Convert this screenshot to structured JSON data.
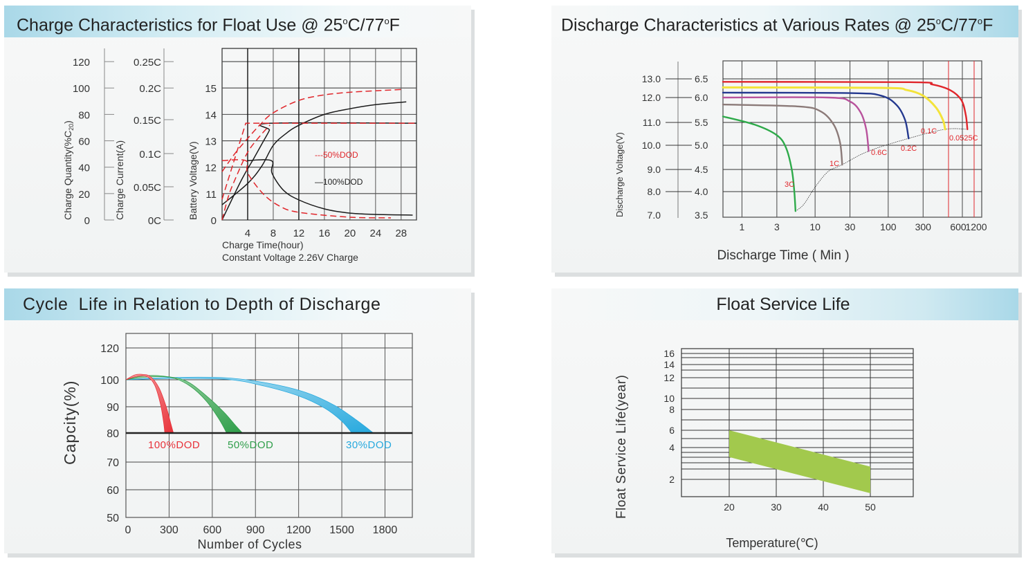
{
  "panels": {
    "charge": {
      "title_main": "Charge Characteristics for Float Use @ 25",
      "deg1": "o",
      "title_mid": "C/77",
      "deg2": "o",
      "title_end": "F"
    },
    "discharge": {
      "title_main": "Discharge Characteristics at Various Rates @ 25",
      "deg1": "o",
      "title_mid": "C/77",
      "deg2": "o",
      "title_end": "F"
    },
    "cycle": {
      "title": "Cycle  Life in Relation to Depth of Discharge"
    },
    "float": {
      "title": "Float Service Life"
    }
  },
  "colors": {
    "grid": "#2a2a2a",
    "red": "#e0262b",
    "black": "#1a1a1a",
    "yellow": "#f3e33a",
    "blue": "#24398f",
    "purple": "#b8529c",
    "brown": "#8b7a78",
    "green": "#2eaa4a",
    "label_red": "#e0262b",
    "cyc_red": "#e8323a",
    "cyc_green": "#2f9e4a",
    "cyc_blue": "#27a9de",
    "float_green": "#a2c94d"
  },
  "chart_data": [
    {
      "type": "line",
      "title": "Charge Characteristics for Float Use @ 25°C/77°F",
      "xlabel": "Charge Time(hour)",
      "xlabel2": "Constant Voltage 2.26V Charge",
      "xlim": [
        0,
        30.4
      ],
      "x_ticks": [
        "4",
        "8",
        "12",
        "16",
        "20",
        "24",
        "28"
      ],
      "x_tick_values": [
        4,
        8,
        12,
        16,
        20,
        24,
        28
      ],
      "axes": [
        {
          "label": "Charge Quantity(%C",
          "label_sub": "20",
          "label_end": ")",
          "ticks": [
            "120",
            "100",
            "80",
            "60",
            "40",
            "20",
            "0"
          ]
        },
        {
          "label": "Charge Current(A)",
          "ticks": [
            "0.25C",
            "0.2C",
            "0.15C",
            "0.1C",
            "0.05C",
            "0C"
          ]
        },
        {
          "label": "Battery Voltage(V)",
          "ticks": [
            "15",
            "14",
            "13",
            "12",
            "11",
            "0"
          ]
        }
      ],
      "ylim_percent": [
        0,
        130
      ],
      "legend": [
        {
          "name": "---50%DOD",
          "style": "dashed",
          "color": "red"
        },
        {
          "name": "—100%DOD",
          "style": "solid",
          "color": "black"
        }
      ],
      "series": [
        {
          "name": "100%DOD voltage",
          "style": "solid",
          "color": "black",
          "points": [
            [
              0,
              11.5
            ],
            [
              4,
              27.7
            ],
            [
              6.2,
              40.8
            ],
            [
              8,
              56.5
            ],
            [
              10,
              65.5
            ],
            [
              12,
              71.7
            ],
            [
              16,
              80
            ],
            [
              20,
              84.3
            ],
            [
              24,
              87.4
            ],
            [
              28.8,
              89.5
            ]
          ]
        },
        {
          "name": "100%DOD charge quantity",
          "style": "solid",
          "color": "black",
          "points": [
            [
              0,
              0
            ],
            [
              3,
              30
            ],
            [
              5,
              47
            ],
            [
              6.5,
              60
            ],
            [
              7.4,
              68
            ],
            [
              7.6,
              73.3
            ],
            [
              30.4,
              73.3
            ]
          ]
        },
        {
          "name": "100%DOD charge current",
          "style": "solid",
          "color": "black",
          "points": [
            [
              3.9,
              45
            ],
            [
              7.7,
              45
            ],
            [
              7.8,
              35.6
            ],
            [
              9.6,
              22.5
            ],
            [
              12,
              15.2
            ],
            [
              16,
              8.4
            ],
            [
              20,
              5.2
            ],
            [
              24,
              4.2
            ],
            [
              29.8,
              3.7
            ]
          ]
        },
        {
          "name": "50%DOD voltage",
          "style": "dashed",
          "color": "red",
          "points": [
            [
              0,
              36.6
            ],
            [
              2,
              50.3
            ],
            [
              4,
              61.8
            ],
            [
              6,
              72.5
            ],
            [
              8,
              81.2
            ],
            [
              12,
              90.6
            ],
            [
              16,
              94.8
            ],
            [
              20,
              96.8
            ],
            [
              24,
              97.9
            ],
            [
              28.5,
              99
            ]
          ]
        },
        {
          "name": "50%DOD charge quantity",
          "style": "dashed",
          "color": "red",
          "points": [
            [
              0,
              15.7
            ],
            [
              3.7,
              73.3
            ],
            [
              30.4,
              73.3
            ]
          ]
        },
        {
          "name": "50%DOD charge quantity rise",
          "style": "dashed",
          "color": "red",
          "points": [
            [
              0,
              0
            ],
            [
              1,
              18
            ],
            [
              2,
              30.4
            ],
            [
              4,
              51.3
            ],
            [
              6,
              64
            ],
            [
              7.5,
              72
            ]
          ]
        },
        {
          "name": "50%DOD charge current",
          "style": "dashed",
          "color": "red",
          "points": [
            [
              0,
              45
            ],
            [
              3.7,
              45
            ],
            [
              4,
              35.6
            ],
            [
              6.4,
              19.9
            ],
            [
              9,
              10.5
            ],
            [
              12,
              5.8
            ],
            [
              20,
              2.1
            ],
            [
              26.4,
              1.6
            ]
          ]
        }
      ]
    },
    {
      "type": "line",
      "title": "Discharge Characteristics at Various Rates @ 25°C/77°F",
      "xlabel": "Discharge Time ( Min )",
      "ylabel": "Discharge Voltage(V)",
      "x_scale": "log",
      "xlim": [
        0.55,
        1900
      ],
      "x_ticks": [
        "1",
        "3",
        "10",
        "30",
        "100",
        "300",
        "600",
        "1200"
      ],
      "y_ticks_left": [
        "13.0",
        "12.0",
        "11.0",
        "10.0",
        "9.0",
        "8.0",
        "7.0"
      ],
      "y_ticks_right": [
        "6.5",
        "6.0",
        "5.5",
        "5.0",
        "4.5",
        "4.0",
        "3.5"
      ],
      "ylim_cell": [
        3.5,
        6.85
      ],
      "series": [
        {
          "name": "0.0525C",
          "color": "red",
          "points": [
            [
              0.55,
              6.42
            ],
            [
              200,
              6.41
            ],
            [
              400,
              6.35
            ],
            [
              700,
              6.2
            ],
            [
              1000,
              5.95
            ],
            [
              1150,
              5.65
            ],
            [
              1210,
              5.35
            ]
          ]
        },
        {
          "name": "0.1C",
          "color": "yellow",
          "points": [
            [
              0.55,
              6.27
            ],
            [
              80,
              6.26
            ],
            [
              180,
              6.2
            ],
            [
              300,
              6.05
            ],
            [
              450,
              5.8
            ],
            [
              560,
              5.55
            ],
            [
              600,
              5.35
            ]
          ]
        },
        {
          "name": "0.2C",
          "color": "blue",
          "points": [
            [
              0.55,
              6.13
            ],
            [
              30,
              6.12
            ],
            [
              80,
              6.05
            ],
            [
              130,
              5.85
            ],
            [
              170,
              5.55
            ],
            [
              190,
              5.15
            ]
          ]
        },
        {
          "name": "0.6C",
          "color": "purple",
          "points": [
            [
              0.55,
              6.0
            ],
            [
              15,
              6.0
            ],
            [
              30,
              5.92
            ],
            [
              42,
              5.7
            ],
            [
              50,
              5.35
            ],
            [
              54,
              4.88
            ]
          ]
        },
        {
          "name": "1C",
          "color": "brown",
          "points": [
            [
              0.55,
              5.86
            ],
            [
              6,
              5.82
            ],
            [
              12,
              5.72
            ],
            [
              18,
              5.45
            ],
            [
              22,
              5.05
            ],
            [
              23.5,
              4.6
            ]
          ]
        },
        {
          "name": "3C",
          "color": "green",
          "points": [
            [
              0.55,
              5.62
            ],
            [
              1.5,
              5.45
            ],
            [
              3,
              5.22
            ],
            [
              4,
              4.95
            ],
            [
              4.8,
              4.5
            ],
            [
              5.2,
              4.0
            ],
            [
              5.4,
              3.62
            ]
          ]
        }
      ],
      "cutoff_line": {
        "points": [
          [
            5.4,
            3.62
          ],
          [
            7,
            3.75
          ],
          [
            10,
            4.1
          ],
          [
            15,
            4.45
          ],
          [
            23.5,
            4.6
          ],
          [
            54,
            4.88
          ],
          [
            190,
            5.15
          ],
          [
            600,
            5.35
          ],
          [
            1210,
            5.35
          ]
        ]
      },
      "red_markers_min": [
        600,
        1200
      ],
      "labels": [
        "3C",
        "1C",
        "0.6C",
        "0.2C",
        "0.1C",
        "0.0525C"
      ]
    },
    {
      "type": "area",
      "title": "Cycle  Life in Relation to Depth of Discharge",
      "xlabel": "Number of Cycles",
      "ylabel": "Capcity(%)",
      "xlim": [
        0,
        1990
      ],
      "ylim": [
        50,
        125
      ],
      "x_ticks": [
        "0",
        "300",
        "600",
        "900",
        "1200",
        "1500",
        "1800"
      ],
      "y_ticks": [
        "120",
        "100",
        "90",
        "80",
        "70",
        "60",
        "50"
      ],
      "series": [
        {
          "name": "100%DOD",
          "color": "cyc_red",
          "upper": [
            [
              0,
              100
            ],
            [
              60,
              103
            ],
            [
              110,
              103.4
            ],
            [
              170,
              102
            ],
            [
              230,
              97
            ],
            [
              280,
              90
            ],
            [
              310,
              84
            ],
            [
              330,
              80
            ]
          ],
          "lower": [
            [
              0,
              100
            ],
            [
              80,
              102.2
            ],
            [
              150,
              101.8
            ],
            [
              200,
              98
            ],
            [
              240,
              91
            ],
            [
              262,
              84
            ],
            [
              270,
              80
            ]
          ]
        },
        {
          "name": "50%DOD",
          "color": "cyc_green",
          "upper": [
            [
              0,
              100
            ],
            [
              120,
              102.4
            ],
            [
              260,
              102.3
            ],
            [
              420,
              99.5
            ],
            [
              560,
              94
            ],
            [
              680,
              88
            ],
            [
              760,
              83
            ],
            [
              810,
              80
            ]
          ],
          "lower": [
            [
              0,
              100
            ],
            [
              150,
              101.7
            ],
            [
              320,
              101.3
            ],
            [
              450,
              97.5
            ],
            [
              560,
              92
            ],
            [
              650,
              85
            ],
            [
              700,
              80
            ]
          ]
        },
        {
          "name": "30%DOD",
          "color": "cyc_blue",
          "upper": [
            [
              0,
              100
            ],
            [
              300,
              101.4
            ],
            [
              700,
              101.2
            ],
            [
              1000,
              98.6
            ],
            [
              1250,
              95.3
            ],
            [
              1450,
              90.5
            ],
            [
              1600,
              85
            ],
            [
              1720,
              80
            ]
          ],
          "lower": [
            [
              0,
              100
            ],
            [
              300,
              100.8
            ],
            [
              700,
              100.3
            ],
            [
              950,
              97.8
            ],
            [
              1200,
              94
            ],
            [
              1380,
              89.5
            ],
            [
              1500,
              84.5
            ],
            [
              1570,
              80
            ]
          ]
        }
      ]
    },
    {
      "type": "area",
      "title": "Float Service Life",
      "xlabel": "Temperature(℃)",
      "ylabel": "Float Service Life(year)",
      "y_scale": "log",
      "xlim": [
        11,
        59
      ],
      "ylim": [
        1.5,
        17
      ],
      "x_ticks": [
        "20",
        "30",
        "40",
        "50"
      ],
      "y_ticks": [
        "16",
        "14",
        "12",
        "10",
        "8",
        "6",
        "4",
        "2"
      ],
      "band": {
        "upper": [
          [
            20,
            6.0
          ],
          [
            50,
            2.8
          ]
        ],
        "lower": [
          [
            20,
            3.4
          ],
          [
            50,
            1.6
          ]
        ]
      }
    }
  ]
}
